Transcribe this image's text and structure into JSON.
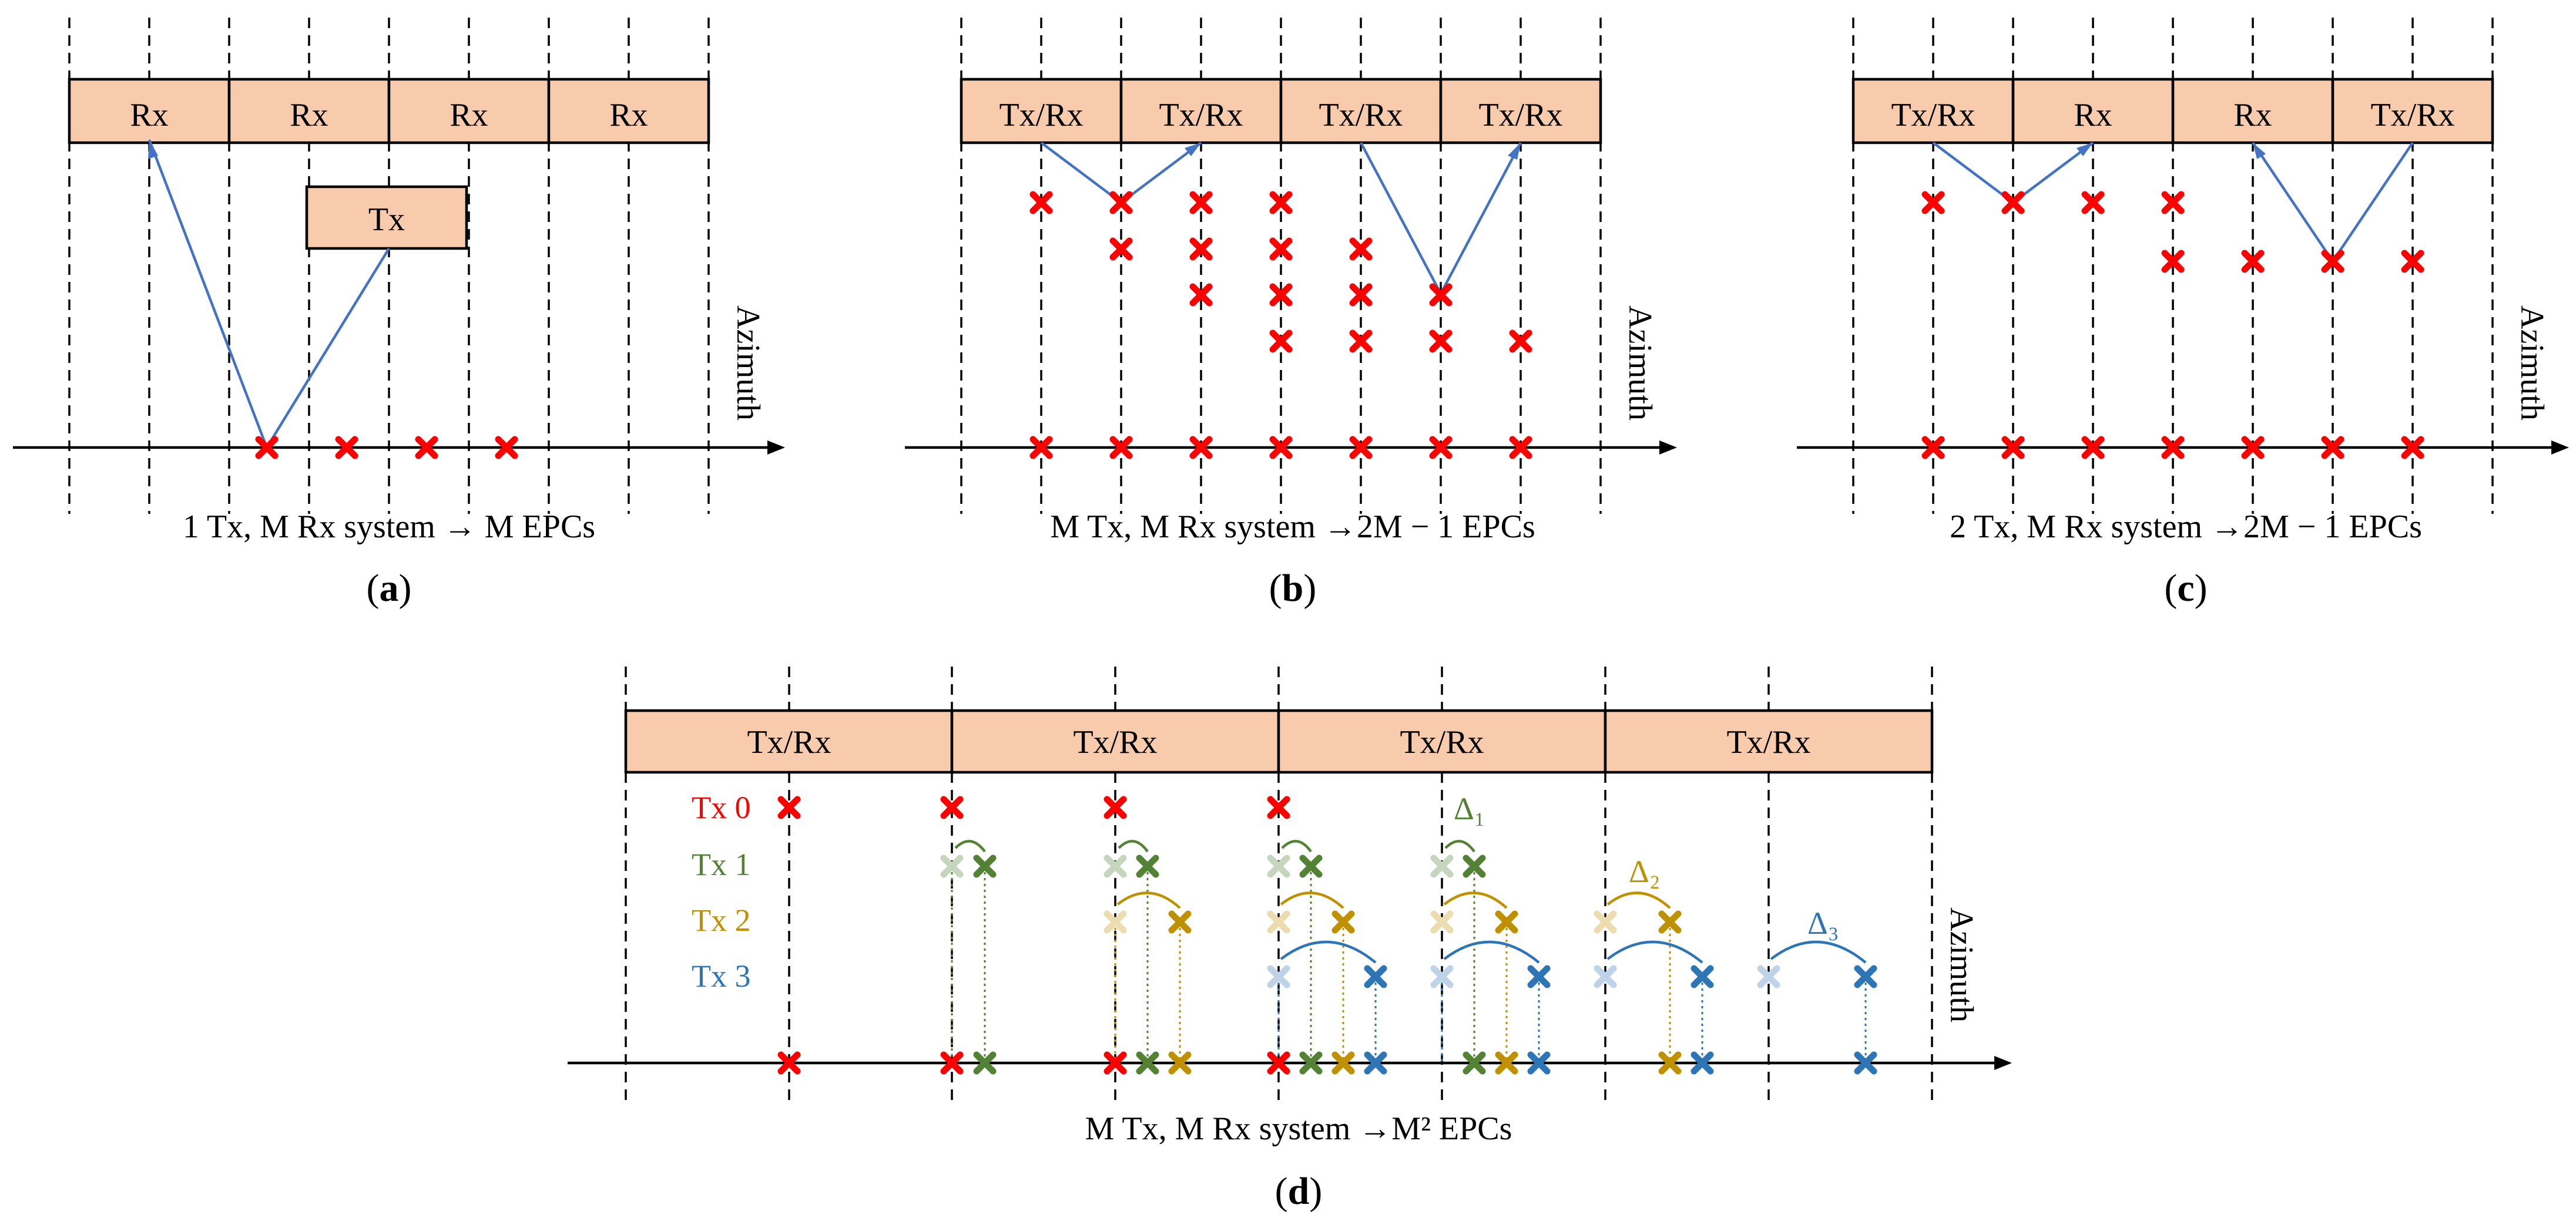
{
  "colors": {
    "box_fill": "#F8CBAD",
    "ray": "#4472C4",
    "epc": "#FF0000",
    "tx": [
      "#FF0000",
      "#548235",
      "#BF9000",
      "#2E75B6"
    ],
    "tx_faded": [
      "#FF9999",
      "#C5D6BC",
      "#ECDCB0",
      "#BFD3E8"
    ]
  },
  "panels": {
    "a": {
      "label_open": "(",
      "label_letter": "a",
      "label_close": ")",
      "caption": "1 Tx, M Rx system → M EPCs",
      "axis_label": "Azimuth",
      "elements": [
        "Rx",
        "Rx",
        "Rx",
        "Rx"
      ],
      "tx_box": "Tx",
      "epc_count": 4
    },
    "b": {
      "label_open": "(",
      "label_letter": "b",
      "label_close": ")",
      "caption": "M Tx, M Rx system →2M − 1 EPCs",
      "axis_label": "Azimuth",
      "elements": [
        "Tx/Rx",
        "Tx/Rx",
        "Tx/Rx",
        "Tx/Rx"
      ],
      "epc_count": 7
    },
    "c": {
      "label_open": "(",
      "label_letter": "c",
      "label_close": ")",
      "caption": "2 Tx, M Rx system →2M − 1 EPCs",
      "axis_label": "Azimuth",
      "elements": [
        "Tx/Rx",
        "Rx",
        "Rx",
        "Tx/Rx"
      ],
      "epc_count": 7
    },
    "d": {
      "label_open": "(",
      "label_letter": "d",
      "label_close": ")",
      "caption": "M Tx, M Rx system →M² EPCs",
      "axis_label": "Azimuth",
      "elements": [
        "Tx/Rx",
        "Tx/Rx",
        "Tx/Rx",
        "Tx/Rx"
      ],
      "tx_labels": [
        "Tx 0",
        "Tx 1",
        "Tx 2",
        "Tx 3"
      ],
      "deltas": [
        "Δ₁",
        "Δ₂",
        "Δ₃"
      ]
    }
  }
}
